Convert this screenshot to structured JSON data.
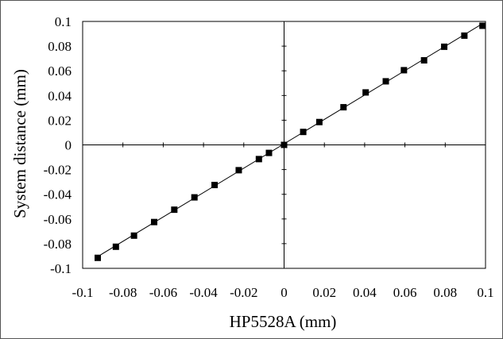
{
  "chart_data": {
    "type": "scatter",
    "title": "",
    "xlabel": "HP5528A (mm)",
    "ylabel": "System distance (mm)",
    "xlim": [
      -0.1,
      0.1
    ],
    "ylim": [
      -0.1,
      0.1
    ],
    "x_ticks": [
      -0.1,
      -0.08,
      -0.06,
      -0.04,
      -0.02,
      0,
      0.02,
      0.04,
      0.06,
      0.08,
      0.1
    ],
    "y_ticks": [
      -0.1,
      -0.08,
      -0.06,
      -0.04,
      -0.02,
      0,
      0.02,
      0.04,
      0.06,
      0.08,
      0.1
    ],
    "x_tick_labels": [
      "-0.1",
      "-0.08",
      "-0.06",
      "-0.04",
      "-0.02",
      "0",
      "0.02",
      "0.04",
      "0.06",
      "0.08",
      "0.1"
    ],
    "y_tick_labels": [
      "-0.1",
      "-0.08",
      "-0.06",
      "-0.04",
      "-0.02",
      "0",
      "0.02",
      "0.04",
      "0.06",
      "0.08",
      "0.1"
    ],
    "grid": false,
    "trendline": true,
    "marker": "square",
    "color": "#000000",
    "series": [
      {
        "points": [
          [
            -0.0925,
            -0.0915
          ],
          [
            -0.0835,
            -0.0825
          ],
          [
            -0.0745,
            -0.0735
          ],
          [
            -0.0645,
            -0.0625
          ],
          [
            -0.0545,
            -0.0525
          ],
          [
            -0.0445,
            -0.0425
          ],
          [
            -0.0345,
            -0.0325
          ],
          [
            -0.0225,
            -0.0205
          ],
          [
            -0.0125,
            -0.0115
          ],
          [
            -0.0075,
            -0.0065
          ],
          [
            0.0,
            0.0
          ],
          [
            0.0095,
            0.0105
          ],
          [
            0.0175,
            0.0185
          ],
          [
            0.0295,
            0.0305
          ],
          [
            0.0405,
            0.0425
          ],
          [
            0.0505,
            0.0515
          ],
          [
            0.0595,
            0.0605
          ],
          [
            0.0695,
            0.0685
          ],
          [
            0.0795,
            0.0795
          ],
          [
            0.0895,
            0.0885
          ],
          [
            0.0985,
            0.0965
          ]
        ]
      }
    ]
  }
}
